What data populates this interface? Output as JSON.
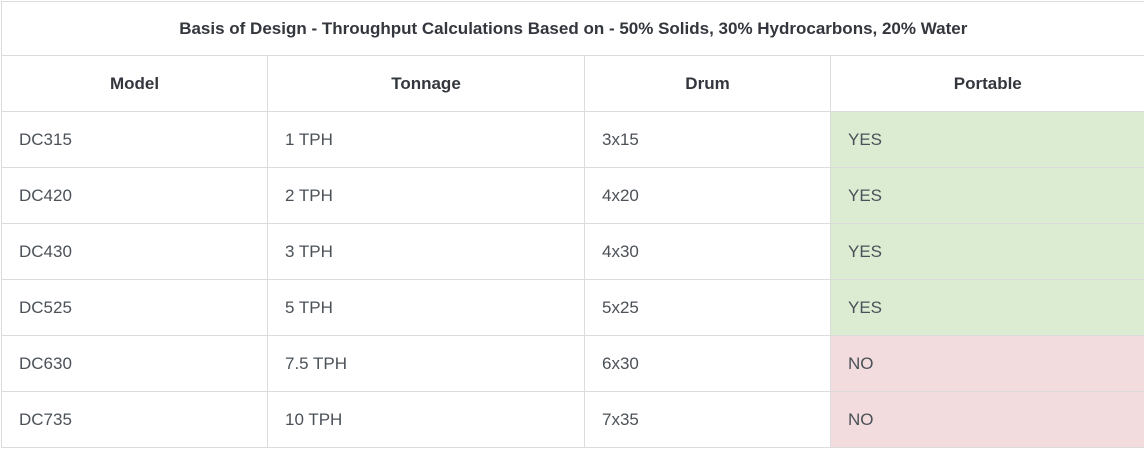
{
  "table": {
    "title": "Basis of Design - Throughput Calculations Based on - 50% Solids, 30% Hydrocarbons, 20% Water",
    "columns": [
      "Model",
      "Tonnage",
      "Drum",
      "Portable"
    ],
    "rows": [
      {
        "model": "DC315",
        "tonnage": "1 TPH",
        "drum": "3x15",
        "portable": "YES"
      },
      {
        "model": "DC420",
        "tonnage": "2 TPH",
        "drum": "4x20",
        "portable": "YES"
      },
      {
        "model": "DC430",
        "tonnage": "3 TPH",
        "drum": "4x30",
        "portable": "YES"
      },
      {
        "model": "DC525",
        "tonnage": "5 TPH",
        "drum": "5x25",
        "portable": "YES"
      },
      {
        "model": "DC630",
        "tonnage": "7.5 TPH",
        "drum": "6x30",
        "portable": "NO"
      },
      {
        "model": "DC735",
        "tonnage": "10 TPH",
        "drum": "7x35",
        "portable": "NO"
      }
    ]
  },
  "colors": {
    "portable_yes_bg": "#dbecd2",
    "portable_no_bg": "#f2dcde",
    "border": "#dcdcdc",
    "heading_text": "#33373d",
    "body_text": "#4b5158"
  }
}
